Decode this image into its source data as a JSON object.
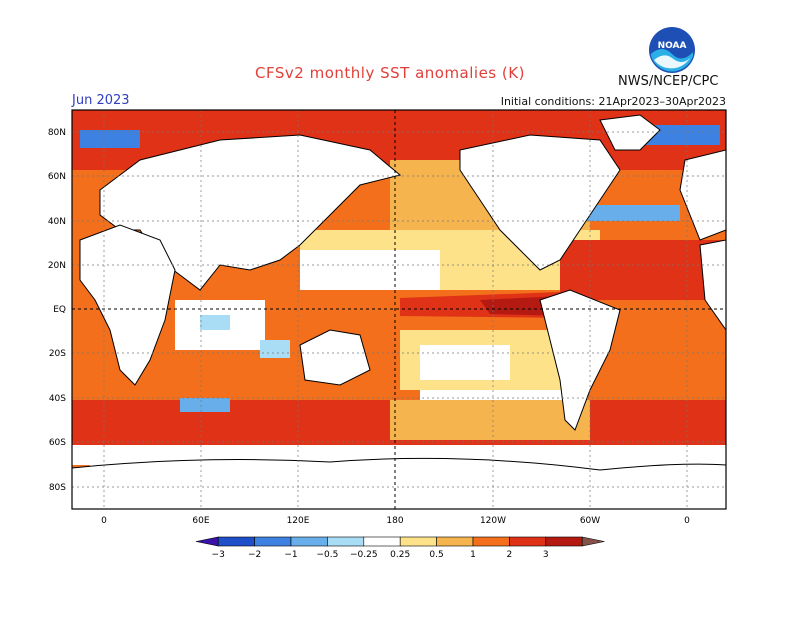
{
  "title": "CFSv2 monthly SST anomalies (K)",
  "month": "Jun 2023",
  "initial_conditions": "Initial conditions: 21Apr2023–30Apr2023",
  "organization": "NWS/NCEP/CPC",
  "logo_text": "NOAA",
  "lat_labels": [
    "80N",
    "60N",
    "40N",
    "20N",
    "EQ",
    "20S",
    "40S",
    "60S",
    "80S"
  ],
  "lon_labels": [
    "0",
    "60E",
    "120E",
    "180",
    "120W",
    "60W",
    "0"
  ],
  "colorbar": {
    "colors": [
      "#3a12a8",
      "#1f4fc8",
      "#3d82e2",
      "#68aeea",
      "#a9dcf5",
      "#ffffff",
      "#fde28a",
      "#f6b44e",
      "#f36f1c",
      "#df3217",
      "#b51a12",
      "#85524a"
    ],
    "tick_labels": [
      "−3",
      "−2",
      "−1",
      "−0.5",
      "−0.25",
      "0.25",
      "0.5",
      "1",
      "2",
      "3"
    ]
  }
}
